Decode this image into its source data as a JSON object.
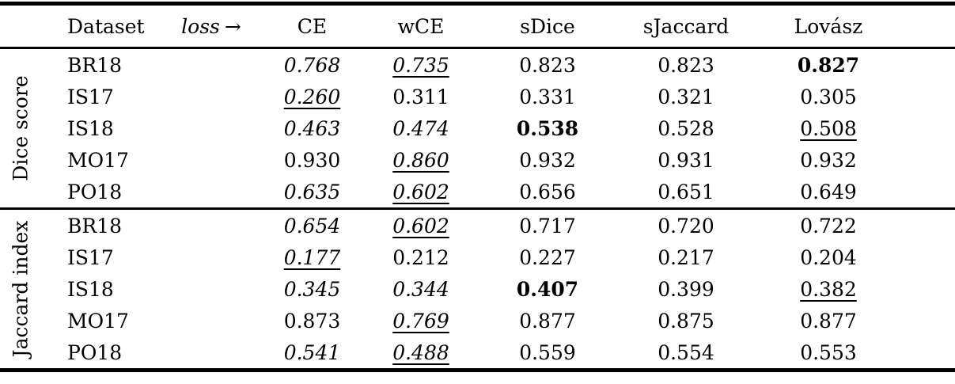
{
  "page": {
    "background_color": "#ffffff",
    "text_color": "#000000"
  },
  "table": {
    "header": {
      "group": "",
      "dataset": "Dataset",
      "loss_label": "loss",
      "loss_arrow": "→",
      "columns": [
        "CE",
        "wCE",
        "sDice",
        "sJaccard",
        "Lovász"
      ]
    },
    "sections": [
      {
        "label": "Dice score",
        "rows": [
          {
            "dataset": "BR18",
            "cells": [
              {
                "text": "0.768",
                "style": "italic"
              },
              {
                "text": "0.735",
                "style": "italic underline"
              },
              {
                "text": "0.823",
                "style": ""
              },
              {
                "text": "0.823",
                "style": ""
              },
              {
                "text": "0.827",
                "style": "bold"
              }
            ]
          },
          {
            "dataset": "IS17",
            "cells": [
              {
                "text": "0.260",
                "style": "italic underline"
              },
              {
                "text": "0.311",
                "style": ""
              },
              {
                "text": "0.331",
                "style": ""
              },
              {
                "text": "0.321",
                "style": ""
              },
              {
                "text": "0.305",
                "style": ""
              }
            ]
          },
          {
            "dataset": "IS18",
            "cells": [
              {
                "text": "0.463",
                "style": "italic"
              },
              {
                "text": "0.474",
                "style": "italic"
              },
              {
                "text": "0.538",
                "style": "bold"
              },
              {
                "text": "0.528",
                "style": ""
              },
              {
                "text": "0.508",
                "style": "underline"
              }
            ]
          },
          {
            "dataset": "MO17",
            "cells": [
              {
                "text": "0.930",
                "style": ""
              },
              {
                "text": "0.860",
                "style": "italic underline"
              },
              {
                "text": "0.932",
                "style": ""
              },
              {
                "text": "0.931",
                "style": ""
              },
              {
                "text": "0.932",
                "style": ""
              }
            ]
          },
          {
            "dataset": "PO18",
            "cells": [
              {
                "text": "0.635",
                "style": "italic"
              },
              {
                "text": "0.602",
                "style": "italic underline"
              },
              {
                "text": "0.656",
                "style": ""
              },
              {
                "text": "0.651",
                "style": ""
              },
              {
                "text": "0.649",
                "style": ""
              }
            ]
          }
        ]
      },
      {
        "label": "Jaccard index",
        "rows": [
          {
            "dataset": "BR18",
            "cells": [
              {
                "text": "0.654",
                "style": "italic"
              },
              {
                "text": "0.602",
                "style": "italic underline"
              },
              {
                "text": "0.717",
                "style": ""
              },
              {
                "text": "0.720",
                "style": ""
              },
              {
                "text": "0.722",
                "style": ""
              }
            ]
          },
          {
            "dataset": "IS17",
            "cells": [
              {
                "text": "0.177",
                "style": "italic underline"
              },
              {
                "text": "0.212",
                "style": ""
              },
              {
                "text": "0.227",
                "style": ""
              },
              {
                "text": "0.217",
                "style": ""
              },
              {
                "text": "0.204",
                "style": ""
              }
            ]
          },
          {
            "dataset": "IS18",
            "cells": [
              {
                "text": "0.345",
                "style": "italic"
              },
              {
                "text": "0.344",
                "style": "italic"
              },
              {
                "text": "0.407",
                "style": "bold"
              },
              {
                "text": "0.399",
                "style": ""
              },
              {
                "text": "0.382",
                "style": "underline"
              }
            ]
          },
          {
            "dataset": "MO17",
            "cells": [
              {
                "text": "0.873",
                "style": ""
              },
              {
                "text": "0.769",
                "style": "italic underline"
              },
              {
                "text": "0.877",
                "style": ""
              },
              {
                "text": "0.875",
                "style": ""
              },
              {
                "text": "0.877",
                "style": ""
              }
            ]
          },
          {
            "dataset": "PO18",
            "cells": [
              {
                "text": "0.541",
                "style": "italic"
              },
              {
                "text": "0.488",
                "style": "italic underline"
              },
              {
                "text": "0.559",
                "style": ""
              },
              {
                "text": "0.554",
                "style": ""
              },
              {
                "text": "0.553",
                "style": ""
              }
            ]
          }
        ]
      }
    ]
  },
  "chart_data": {
    "type": "table",
    "columns": [
      "CE",
      "wCE",
      "sDice",
      "sJaccard",
      "Lovász"
    ],
    "row_groups": [
      {
        "metric": "Dice score",
        "rows": [
          {
            "dataset": "BR18",
            "values": [
              0.768,
              0.735,
              0.823,
              0.823,
              0.827
            ]
          },
          {
            "dataset": "IS17",
            "values": [
              0.26,
              0.311,
              0.331,
              0.321,
              0.305
            ]
          },
          {
            "dataset": "IS18",
            "values": [
              0.463,
              0.474,
              0.538,
              0.528,
              0.508
            ]
          },
          {
            "dataset": "MO17",
            "values": [
              0.93,
              0.86,
              0.932,
              0.931,
              0.932
            ]
          },
          {
            "dataset": "PO18",
            "values": [
              0.635,
              0.602,
              0.656,
              0.651,
              0.649
            ]
          }
        ]
      },
      {
        "metric": "Jaccard index",
        "rows": [
          {
            "dataset": "BR18",
            "values": [
              0.654,
              0.602,
              0.717,
              0.72,
              0.722
            ]
          },
          {
            "dataset": "IS17",
            "values": [
              0.177,
              0.212,
              0.227,
              0.217,
              0.204
            ]
          },
          {
            "dataset": "IS18",
            "values": [
              0.345,
              0.344,
              0.407,
              0.399,
              0.382
            ]
          },
          {
            "dataset": "MO17",
            "values": [
              0.873,
              0.769,
              0.877,
              0.875,
              0.877
            ]
          },
          {
            "dataset": "PO18",
            "values": [
              0.541,
              0.488,
              0.559,
              0.554,
              0.553
            ]
          }
        ]
      }
    ]
  }
}
